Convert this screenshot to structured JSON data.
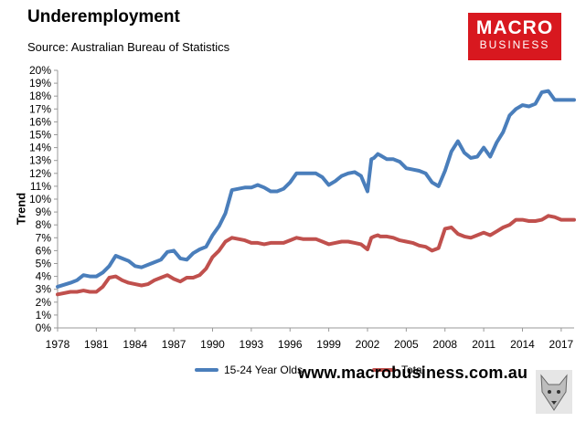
{
  "header": {
    "title": "Underemployment",
    "source": "Source: Australian Bureau of Statistics"
  },
  "logo": {
    "line1": "MACRO",
    "line2": "BUSINESS",
    "color": "#d8181f"
  },
  "website": "www.macrobusiness.com.au",
  "chart_data": {
    "type": "line",
    "title": "Underemployment",
    "xlabel": "",
    "ylabel": "Trend",
    "ylim": [
      0,
      20
    ],
    "xlim": [
      1978,
      2018
    ],
    "grid": false,
    "legend_position": "bottom",
    "y_ticks": [
      "0%",
      "1%",
      "2%",
      "3%",
      "4%",
      "5%",
      "6%",
      "7%",
      "8%",
      "9%",
      "10%",
      "11%",
      "12%",
      "13%",
      "14%",
      "15%",
      "16%",
      "17%",
      "18%",
      "19%",
      "20%"
    ],
    "x_ticks": [
      "1978",
      "1981",
      "1984",
      "1987",
      "1990",
      "1993",
      "1996",
      "1999",
      "2002",
      "2005",
      "2008",
      "2011",
      "2014",
      "2017"
    ],
    "series": [
      {
        "name": "15-24 Year Olds",
        "color": "#4a7ebb",
        "x": [
          1978,
          1979,
          1979.5,
          1980,
          1980.5,
          1981,
          1981.5,
          1982,
          1982.5,
          1983,
          1983.5,
          1984,
          1984.5,
          1985,
          1985.5,
          1986,
          1986.5,
          1987,
          1987.5,
          1988,
          1988.5,
          1989,
          1989.5,
          1990,
          1990.5,
          1991,
          1991.5,
          1992,
          1992.5,
          1993,
          1993.5,
          1994,
          1994.5,
          1995,
          1995.5,
          1996,
          1996.5,
          1997,
          1997.5,
          1998,
          1998.5,
          1999,
          1999.5,
          2000,
          2000.5,
          2001,
          2001.5,
          2002,
          2002.3,
          2002.5,
          2002.8,
          2003,
          2003.5,
          2004,
          2004.5,
          2005,
          2005.5,
          2006,
          2006.5,
          2007,
          2007.5,
          2008,
          2008.5,
          2009,
          2009.5,
          2010,
          2010.5,
          2011,
          2011.5,
          2012,
          2012.5,
          2013,
          2013.5,
          2014,
          2014.5,
          2015,
          2015.5,
          2016,
          2016.5,
          2017,
          2017.5,
          2018
        ],
        "values": [
          3.2,
          3.5,
          3.7,
          4.1,
          4.0,
          4.0,
          4.3,
          4.8,
          5.6,
          5.4,
          5.2,
          4.8,
          4.7,
          4.9,
          5.1,
          5.3,
          5.9,
          6.0,
          5.4,
          5.3,
          5.8,
          6.1,
          6.3,
          7.2,
          7.9,
          8.9,
          10.7,
          10.8,
          10.9,
          10.9,
          11.1,
          10.9,
          10.6,
          10.6,
          10.8,
          11.3,
          12.0,
          12.0,
          12.0,
          12.0,
          11.7,
          11.1,
          11.4,
          11.8,
          12.0,
          12.1,
          11.8,
          10.6,
          13.1,
          13.2,
          13.5,
          13.4,
          13.1,
          13.1,
          12.9,
          12.4,
          12.3,
          12.2,
          12.0,
          11.3,
          11.0,
          12.2,
          13.7,
          14.5,
          13.6,
          13.2,
          13.3,
          14.0,
          13.3,
          14.4,
          15.2,
          16.5,
          17.0,
          17.3,
          17.2,
          17.4,
          18.3,
          18.4,
          17.7,
          17.7,
          17.7,
          17.7
        ],
        "notes": ""
      },
      {
        "name": "Total",
        "color": "#c0504d",
        "x": [
          1978,
          1979,
          1979.5,
          1980,
          1980.5,
          1981,
          1981.5,
          1982,
          1982.5,
          1983,
          1983.5,
          1984,
          1984.5,
          1985,
          1985.5,
          1986,
          1986.5,
          1987,
          1987.5,
          1988,
          1988.5,
          1989,
          1989.5,
          1990,
          1990.5,
          1991,
          1991.5,
          1992,
          1992.5,
          1993,
          1993.5,
          1994,
          1994.5,
          1995,
          1995.5,
          1996,
          1996.5,
          1997,
          1997.5,
          1998,
          1998.5,
          1999,
          1999.5,
          2000,
          2000.5,
          2001,
          2001.5,
          2002,
          2002.3,
          2002.5,
          2002.8,
          2003,
          2003.5,
          2004,
          2004.5,
          2005,
          2005.5,
          2006,
          2006.5,
          2007,
          2007.5,
          2008,
          2008.5,
          2009,
          2009.5,
          2010,
          2010.5,
          2011,
          2011.5,
          2012,
          2012.5,
          2013,
          2013.5,
          2014,
          2014.5,
          2015,
          2015.5,
          2016,
          2016.5,
          2017,
          2017.5,
          2018
        ],
        "values": [
          2.6,
          2.8,
          2.8,
          2.9,
          2.8,
          2.8,
          3.2,
          3.9,
          4.0,
          3.7,
          3.5,
          3.4,
          3.3,
          3.4,
          3.7,
          3.9,
          4.1,
          3.8,
          3.6,
          3.9,
          3.9,
          4.1,
          4.6,
          5.5,
          6.0,
          6.7,
          7.0,
          6.9,
          6.8,
          6.6,
          6.6,
          6.5,
          6.6,
          6.6,
          6.6,
          6.8,
          7.0,
          6.9,
          6.9,
          6.9,
          6.7,
          6.5,
          6.6,
          6.7,
          6.7,
          6.6,
          6.5,
          6.1,
          7.0,
          7.1,
          7.2,
          7.1,
          7.1,
          7.0,
          6.8,
          6.7,
          6.6,
          6.4,
          6.3,
          6.0,
          6.2,
          7.7,
          7.8,
          7.3,
          7.1,
          7.0,
          7.2,
          7.4,
          7.2,
          7.5,
          7.8,
          8.0,
          8.4,
          8.4,
          8.3,
          8.3,
          8.4,
          8.7,
          8.6,
          8.4,
          8.4,
          8.4
        ]
      }
    ]
  }
}
